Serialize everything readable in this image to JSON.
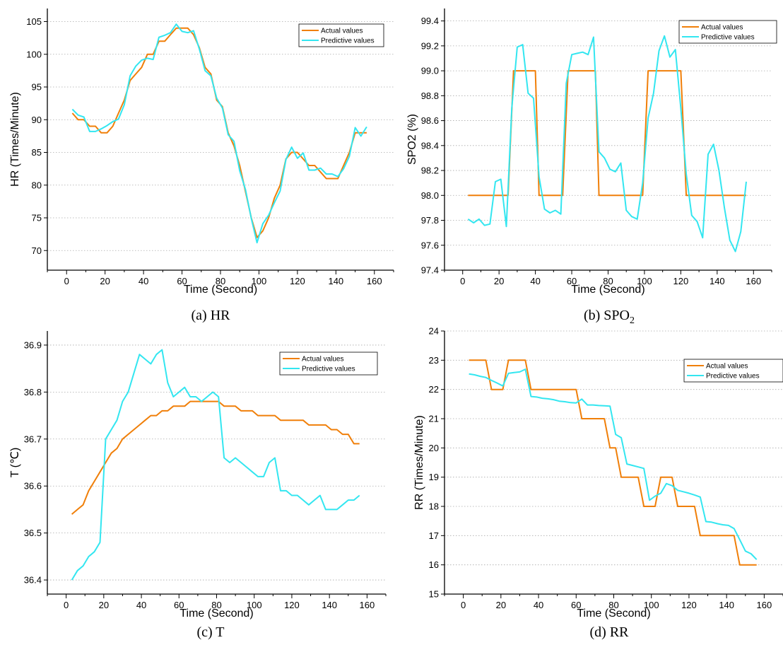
{
  "colors": {
    "actual": "#F07F09",
    "predictive": "#33E6F0",
    "grid": "#aaaaaa"
  },
  "chart_data": [
    {
      "type": "line",
      "caption": "(a) HR",
      "xlabel": "Time (Second)",
      "ylabel": "HR (Times/Minute)",
      "xlim": [
        -10,
        170
      ],
      "ylim": [
        67,
        107
      ],
      "xticks": [
        0,
        20,
        40,
        60,
        80,
        100,
        120,
        140,
        160
      ],
      "yticks": [
        70,
        75,
        80,
        85,
        90,
        95,
        100,
        105
      ],
      "ytick_labels": [
        "70",
        "75",
        "80",
        "85",
        "90",
        "95",
        "100",
        "105"
      ],
      "legend": "top-right",
      "series": [
        {
          "name": "Actual values",
          "color": "#F07F09",
          "x": [
            3,
            6,
            9,
            12,
            15,
            18,
            21,
            24,
            27,
            30,
            33,
            36,
            39,
            42,
            45,
            48,
            51,
            54,
            57,
            60,
            63,
            66,
            69,
            72,
            75,
            78,
            81,
            84,
            87,
            90,
            93,
            96,
            99,
            102,
            105,
            108,
            111,
            114,
            117,
            120,
            123,
            126,
            129,
            132,
            135,
            138,
            141,
            144,
            147,
            150,
            153,
            156
          ],
          "y": [
            91,
            90,
            90,
            89,
            89,
            88,
            88,
            89,
            91,
            93,
            96,
            97,
            98,
            100,
            100,
            102,
            102,
            103,
            104,
            104,
            104,
            103,
            101,
            98,
            97,
            93,
            92,
            88,
            86,
            83,
            79,
            75,
            72,
            73,
            75,
            78,
            80,
            84,
            85,
            85,
            84,
            83,
            83,
            82,
            81,
            81,
            81,
            83,
            85,
            88,
            88,
            88
          ]
        },
        {
          "name": "Predictive values",
          "color": "#33E6F0",
          "x": [
            3,
            6,
            9,
            12,
            15,
            18,
            21,
            24,
            27,
            30,
            33,
            36,
            39,
            42,
            45,
            48,
            51,
            54,
            57,
            60,
            63,
            66,
            69,
            72,
            75,
            78,
            81,
            84,
            87,
            90,
            93,
            96,
            99,
            102,
            105,
            108,
            111,
            114,
            117,
            120,
            123,
            126,
            129,
            132,
            135,
            138,
            141,
            144,
            147,
            150,
            153,
            156
          ],
          "y": [
            91.6,
            90.7,
            90.4,
            88.2,
            88.2,
            88.6,
            89.1,
            89.7,
            90.1,
            92.3,
            96.7,
            98.2,
            99.1,
            99.4,
            99.2,
            102.6,
            102.9,
            103.3,
            104.6,
            103.5,
            103.3,
            103.6,
            100.8,
            97.5,
            96.7,
            93.3,
            91.8,
            87.7,
            86.7,
            82.2,
            79.3,
            74.9,
            71.2,
            74.1,
            75.4,
            77.3,
            79.1,
            83.9,
            85.8,
            84.1,
            84.9,
            82.3,
            82.3,
            82.6,
            81.7,
            81.7,
            81.3,
            82.5,
            84.4,
            88.8,
            87.5,
            88.9
          ]
        }
      ]
    },
    {
      "type": "line",
      "caption": "(b) SPO",
      "caption_sub": "2",
      "xlabel": "Time (Second)",
      "ylabel": "SPO2 (%)",
      "xlim": [
        -10,
        170
      ],
      "ylim": [
        97.4,
        99.5
      ],
      "xticks": [
        0,
        20,
        40,
        60,
        80,
        100,
        120,
        140,
        160
      ],
      "yticks": [
        97.4,
        97.6,
        97.8,
        98.0,
        98.2,
        98.4,
        98.6,
        98.8,
        99.0,
        99.2,
        99.4
      ],
      "ytick_labels": [
        "97.4",
        "97.6",
        "97.8",
        "98.0",
        "98.2",
        "98.4",
        "98.6",
        "98.8",
        "99.0",
        "99.2",
        "99.4"
      ],
      "legend": "top-right",
      "series": [
        {
          "name": "Actual values",
          "color": "#F07F09",
          "x": [
            3,
            25,
            28,
            40,
            42,
            55,
            58,
            73,
            75,
            99,
            102,
            120,
            123,
            156
          ],
          "y": [
            98,
            98,
            99,
            99,
            98,
            98,
            99,
            99,
            98,
            98,
            99,
            99,
            98,
            98
          ]
        },
        {
          "name": "Predictive values",
          "color": "#33E6F0",
          "x": [
            3,
            6,
            9,
            12,
            15,
            18,
            21,
            24,
            27,
            30,
            33,
            36,
            39,
            42,
            45,
            48,
            51,
            54,
            57,
            60,
            63,
            66,
            69,
            72,
            75,
            78,
            81,
            84,
            87,
            90,
            93,
            96,
            99,
            102,
            105,
            108,
            111,
            114,
            117,
            120,
            123,
            126,
            129,
            132,
            135,
            138,
            141,
            144,
            147,
            150,
            153,
            156
          ],
          "y": [
            97.81,
            97.78,
            97.81,
            97.76,
            97.77,
            98.11,
            98.13,
            97.75,
            98.7,
            99.19,
            99.21,
            98.82,
            98.78,
            98.15,
            97.89,
            97.86,
            97.88,
            97.85,
            98.9,
            99.13,
            99.14,
            99.15,
            99.13,
            99.27,
            98.35,
            98.3,
            98.21,
            98.19,
            98.26,
            97.88,
            97.83,
            97.81,
            98.1,
            98.62,
            98.82,
            99.16,
            99.28,
            99.11,
            99.17,
            98.7,
            98.17,
            97.84,
            97.79,
            97.66,
            98.33,
            98.41,
            98.2,
            97.9,
            97.64,
            97.55,
            97.71,
            98.11
          ]
        }
      ]
    },
    {
      "type": "line",
      "caption": "(c) T",
      "xlabel": "Time (Second)",
      "ylabel": "T (℃)",
      "xlim": [
        -10,
        170
      ],
      "ylim": [
        36.37,
        36.93
      ],
      "xticks": [
        0,
        20,
        40,
        60,
        80,
        100,
        120,
        140,
        160
      ],
      "yticks": [
        36.4,
        36.5,
        36.6,
        36.7,
        36.8,
        36.9
      ],
      "ytick_labels": [
        "36.4",
        "36.5",
        "36.6",
        "36.7",
        "36.8",
        "36.9"
      ],
      "legend": "top-right",
      "series": [
        {
          "name": "Actual values",
          "color": "#F07F09",
          "x": [
            3,
            6,
            9,
            12,
            15,
            18,
            21,
            24,
            27,
            30,
            33,
            36,
            39,
            42,
            45,
            48,
            51,
            54,
            57,
            60,
            63,
            66,
            69,
            72,
            75,
            78,
            81,
            84,
            87,
            90,
            93,
            96,
            99,
            102,
            105,
            108,
            111,
            114,
            117,
            120,
            123,
            126,
            129,
            132,
            135,
            138,
            141,
            144,
            147,
            150,
            153,
            156
          ],
          "y": [
            36.54,
            36.55,
            36.56,
            36.59,
            36.61,
            36.63,
            36.65,
            36.67,
            36.68,
            36.7,
            36.71,
            36.72,
            36.73,
            36.74,
            36.75,
            36.75,
            36.76,
            36.76,
            36.77,
            36.77,
            36.77,
            36.78,
            36.78,
            36.78,
            36.78,
            36.78,
            36.78,
            36.77,
            36.77,
            36.77,
            36.76,
            36.76,
            36.76,
            36.75,
            36.75,
            36.75,
            36.75,
            36.74,
            36.74,
            36.74,
            36.74,
            36.74,
            36.73,
            36.73,
            36.73,
            36.73,
            36.72,
            36.72,
            36.71,
            36.71,
            36.69,
            36.69
          ]
        },
        {
          "name": "Predictive values",
          "color": "#33E6F0",
          "x": [
            3,
            6,
            9,
            12,
            15,
            18,
            21,
            24,
            27,
            30,
            33,
            36,
            39,
            42,
            45,
            48,
            51,
            54,
            57,
            60,
            63,
            66,
            69,
            72,
            75,
            78,
            81,
            84,
            87,
            90,
            93,
            96,
            99,
            102,
            105,
            108,
            111,
            114,
            117,
            120,
            123,
            126,
            129,
            132,
            135,
            138,
            141,
            144,
            147,
            150,
            153,
            156
          ],
          "y": [
            36.4,
            36.42,
            36.43,
            36.45,
            36.46,
            36.48,
            36.7,
            36.72,
            36.74,
            36.78,
            36.8,
            36.84,
            36.88,
            36.87,
            36.86,
            36.88,
            36.89,
            36.82,
            36.79,
            36.8,
            36.81,
            36.79,
            36.79,
            36.78,
            36.79,
            36.8,
            36.79,
            36.66,
            36.65,
            36.66,
            36.65,
            36.64,
            36.63,
            36.62,
            36.62,
            36.65,
            36.66,
            36.59,
            36.59,
            36.58,
            36.58,
            36.57,
            36.56,
            36.57,
            36.58,
            36.55,
            36.55,
            36.55,
            36.56,
            36.57,
            36.57,
            36.58
          ]
        }
      ]
    },
    {
      "type": "line",
      "caption": "(d) RR",
      "xlabel": "Time (Second)",
      "ylabel": "RR (Times/Minute)",
      "xlim": [
        -10,
        170
      ],
      "ylim": [
        15,
        24
      ],
      "xticks": [
        0,
        20,
        40,
        60,
        80,
        100,
        120,
        140,
        160
      ],
      "yticks": [
        15,
        16,
        17,
        18,
        19,
        20,
        21,
        22,
        23,
        24
      ],
      "ytick_labels": [
        "15",
        "16",
        "17",
        "18",
        "19",
        "20",
        "21",
        "22",
        "23",
        "24"
      ],
      "legend": "top-right",
      "series": [
        {
          "name": "Actual values",
          "color": "#F07F09",
          "x": [
            3,
            12,
            15,
            21,
            24,
            33,
            36,
            60,
            63,
            75,
            78,
            81,
            84,
            93,
            96,
            102,
            105,
            111,
            114,
            123,
            126,
            144,
            147,
            156
          ],
          "y": [
            23,
            23,
            22,
            22,
            23,
            23,
            22,
            22,
            21,
            21,
            20,
            20,
            19,
            19,
            18,
            18,
            19,
            19,
            18,
            18,
            17,
            17,
            16,
            16
          ]
        },
        {
          "name": "Predictive values",
          "color": "#33E6F0",
          "x": [
            3,
            6,
            9,
            12,
            15,
            18,
            21,
            24,
            27,
            30,
            33,
            36,
            39,
            42,
            45,
            48,
            51,
            54,
            57,
            60,
            63,
            66,
            69,
            72,
            75,
            78,
            81,
            84,
            87,
            90,
            93,
            96,
            99,
            102,
            105,
            108,
            111,
            114,
            117,
            120,
            123,
            126,
            129,
            132,
            135,
            138,
            141,
            144,
            147,
            150,
            153,
            156
          ],
          "y": [
            22.53,
            22.5,
            22.45,
            22.41,
            22.31,
            22.22,
            22.12,
            22.55,
            22.58,
            22.6,
            22.69,
            21.76,
            21.74,
            21.7,
            21.68,
            21.65,
            21.6,
            21.58,
            21.55,
            21.54,
            21.67,
            21.47,
            21.47,
            21.45,
            21.44,
            21.43,
            20.46,
            20.35,
            19.45,
            19.4,
            19.35,
            19.3,
            18.21,
            18.35,
            18.45,
            18.78,
            18.71,
            18.55,
            18.5,
            18.45,
            18.39,
            18.32,
            17.48,
            17.46,
            17.41,
            17.37,
            17.35,
            17.24,
            16.86,
            16.47,
            16.38,
            16.18
          ]
        }
      ]
    }
  ]
}
